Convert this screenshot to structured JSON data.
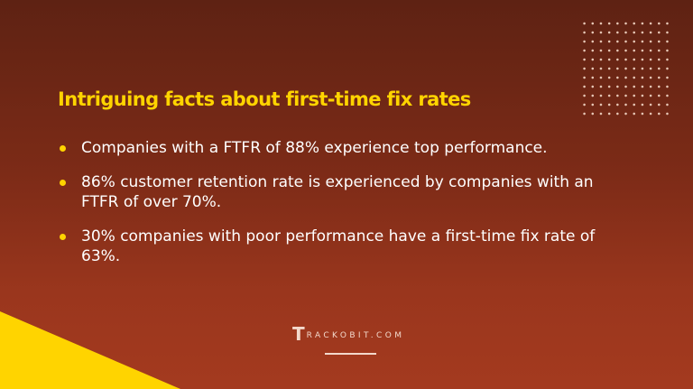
{
  "title": "Intriguing facts about first-time fix rates",
  "facts": [
    "Companies with a FTFR of 88% experience top performance.",
    "86% customer retention rate is experienced by companies with an FTFR of over 70%.",
    "30% companies with poor performance have a first-time fix rate of 63%."
  ],
  "logo": {
    "text": "TRACKOBIT.COM",
    "mark": "T",
    "rest": "RACKOBIT.COM"
  },
  "colors": {
    "accent": "#ffd400",
    "background_top": "#5e2213",
    "background_bottom": "#a43a1f"
  }
}
